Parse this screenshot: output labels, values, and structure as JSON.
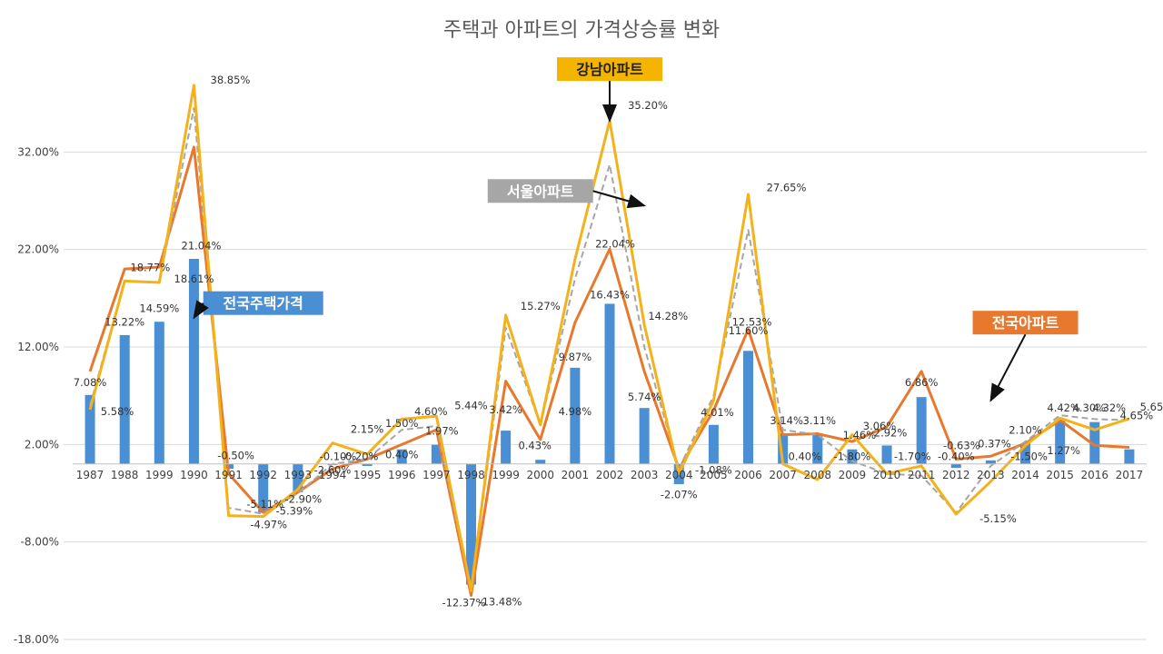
{
  "chart_data": {
    "type": "bar",
    "title": "주택과 아파트의 가격상승률 변화",
    "categories": [
      "1987",
      "1988",
      "1999",
      "1990",
      "1991",
      "1992",
      "1993",
      "1994",
      "1995",
      "1996",
      "1997",
      "1998",
      "1999",
      "2000",
      "2001",
      "2002",
      "2003",
      "2004",
      "2005",
      "2006",
      "2007",
      "2008",
      "2009",
      "2010",
      "2011",
      "2012",
      "2013",
      "2014",
      "2015",
      "2016",
      "2017"
    ],
    "ylim": [
      -18,
      42
    ],
    "yticks": [
      "32.00%",
      "22.00%",
      "12.00%",
      "2.00%",
      "-8.00%",
      "-18.00%"
    ],
    "ytick_values": [
      32,
      22,
      12,
      2,
      -8,
      -18
    ],
    "gridlines": true,
    "series": [
      {
        "name": "전국주택가격",
        "kind": "bar",
        "color": "#4a8fd3",
        "values": [
          7.08,
          13.22,
          14.59,
          21.04,
          -0.5,
          -5.0,
          -2.9,
          -0.1,
          -0.2,
          1.5,
          1.97,
          -12.37,
          3.42,
          0.43,
          9.87,
          16.43,
          5.74,
          -2.07,
          4.01,
          11.6,
          3.14,
          3.11,
          1.5,
          1.9,
          6.86,
          -0.4,
          0.37,
          2.1,
          4.42,
          4.3,
          1.5
        ]
      },
      {
        "name": "전국아파트",
        "kind": "line",
        "color": "#e8782d",
        "values": [
          9.5,
          20.0,
          20.2,
          32.5,
          -1.0,
          -4.97,
          -2.9,
          -0.5,
          0.5,
          2.0,
          3.5,
          -13.48,
          8.5,
          2.5,
          14.5,
          22.04,
          9.5,
          -0.5,
          5.5,
          13.8,
          3.0,
          3.1,
          2.3,
          3.8,
          9.5,
          0.5,
          0.8,
          2.1,
          4.5,
          1.9,
          1.7
        ]
      },
      {
        "name": "서울아파트",
        "kind": "line",
        "color": "#a6a6a6",
        "dashed": true,
        "values": [
          6.0,
          18.77,
          18.61,
          36.5,
          -4.5,
          -5.11,
          -3.0,
          0.0,
          0.5,
          3.5,
          3.9,
          -13.0,
          14.0,
          4.0,
          19.0,
          30.7,
          12.0,
          -0.5,
          7.0,
          24.0,
          3.5,
          3.0,
          0.3,
          -1.0,
          -1.2,
          -5.0,
          -0.2,
          2.3,
          5.0,
          4.6,
          4.5
        ]
      },
      {
        "name": "강남아파트",
        "kind": "line",
        "color": "#f3b21c",
        "values": [
          5.58,
          18.77,
          18.61,
          38.85,
          -5.3,
          -5.39,
          -2.6,
          2.15,
          1.0,
          4.6,
          4.9,
          -13.0,
          15.27,
          4.0,
          21.0,
          35.2,
          14.28,
          -1.0,
          6.5,
          27.65,
          0.0,
          -1.6,
          3.0,
          -1.0,
          -0.2,
          -5.15,
          -1.8,
          1.9,
          4.7,
          3.5,
          4.65
        ]
      }
    ],
    "data_labels": [
      {
        "text": "7.08%",
        "cat": 0,
        "y": 8.0
      },
      {
        "text": "5.58%",
        "cat": 0,
        "y": 5.0,
        "dx": 30
      },
      {
        "text": "13.22%",
        "cat": 1,
        "y": 14.2
      },
      {
        "text": "14.59%",
        "cat": 2,
        "y": 15.6
      },
      {
        "text": "18.77%",
        "cat": 2,
        "y": 19.8,
        "dx": -10
      },
      {
        "text": "21.04%",
        "cat": 3,
        "y": 22.0,
        "dx": 8
      },
      {
        "text": "18.61%",
        "cat": 3,
        "y": 18.6,
        "dx": 0
      },
      {
        "text": "38.85%",
        "cat": 3,
        "y": 39.0,
        "dx": 40
      },
      {
        "text": "-0.50%",
        "cat": 4,
        "y": 0.5,
        "dx": 8
      },
      {
        "text": "-5.11%",
        "cat": 5,
        "y": -4.5,
        "dx": 2
      },
      {
        "text": "-4.97%",
        "cat": 5,
        "y": -6.6,
        "dx": 6
      },
      {
        "text": "-5.39%",
        "cat": 6,
        "y": -5.2,
        "dx": -4
      },
      {
        "text": "-2.90%",
        "cat": 6,
        "y": -4.0,
        "dx": 6
      },
      {
        "text": "-2.60%",
        "cat": 7,
        "y": -1.0,
        "dx": 0
      },
      {
        "text": "-0.10%",
        "cat": 7,
        "y": 0.4,
        "dx": 6
      },
      {
        "text": "-0.20%",
        "cat": 8,
        "y": 0.4,
        "dx": -8
      },
      {
        "text": "2.15%",
        "cat": 8,
        "y": 3.2,
        "dx": 0
      },
      {
        "text": "0.40%",
        "cat": 9,
        "y": 0.6,
        "dx": 0
      },
      {
        "text": "1.50%",
        "cat": 9,
        "y": 3.8,
        "dx": 0
      },
      {
        "text": "4.60%",
        "cat": 10,
        "y": 5.0,
        "dx": -6
      },
      {
        "text": "1.97%",
        "cat": 10,
        "y": 3.0,
        "dx": 6
      },
      {
        "text": "5.44%",
        "cat": 11,
        "y": 5.6,
        "dx": 0
      },
      {
        "text": "-12.37%",
        "cat": 11,
        "y": -14.6,
        "dx": -8
      },
      {
        "text": "-13.48%",
        "cat": 11,
        "y": -14.5,
        "dx": 32
      },
      {
        "text": "3.42%",
        "cat": 12,
        "y": 5.2,
        "dx": 0
      },
      {
        "text": "0.43%",
        "cat": 13,
        "y": 1.5,
        "dx": -6
      },
      {
        "text": "15.27%",
        "cat": 13,
        "y": 15.8,
        "dx": 0
      },
      {
        "text": "4.98%",
        "cat": 14,
        "y": 5.0,
        "dx": 0
      },
      {
        "text": "9.87%",
        "cat": 14,
        "y": 10.6,
        "dx": 0
      },
      {
        "text": "22.04%",
        "cat": 15,
        "y": 22.2,
        "dx": 6
      },
      {
        "text": "16.43%",
        "cat": 15,
        "y": 17.0,
        "dx": 0
      },
      {
        "text": "35.20%",
        "cat": 15,
        "y": 36.4,
        "dx": 42
      },
      {
        "text": "5.74%",
        "cat": 16,
        "y": 6.5,
        "dx": 0
      },
      {
        "text": "14.28%",
        "cat": 17,
        "y": 14.8,
        "dx": -12
      },
      {
        "text": "-2.07%",
        "cat": 17,
        "y": -3.5,
        "dx": 0
      },
      {
        "text": "-1.08%",
        "cat": 18,
        "y": -1.0,
        "dx": 0
      },
      {
        "text": "4.01%",
        "cat": 18,
        "y": 4.9,
        "dx": 4
      },
      {
        "text": "11.60%",
        "cat": 19,
        "y": 13.3,
        "dx": 0
      },
      {
        "text": "12.53%",
        "cat": 19,
        "y": 14.2,
        "dx": 4
      },
      {
        "text": "27.65%",
        "cat": 19,
        "y": 28.0,
        "dx": 42
      },
      {
        "text": "3.14%",
        "cat": 20,
        "y": 4.1,
        "dx": 4
      },
      {
        "text": "3.11%",
        "cat": 21,
        "y": 4.1,
        "dx": 2
      },
      {
        "text": "0.40%",
        "cat": 21,
        "y": 0.4,
        "dx": -14
      },
      {
        "text": "-1.80%",
        "cat": 22,
        "y": 0.4,
        "dx": 0
      },
      {
        "text": "1.46%",
        "cat": 22,
        "y": 2.6,
        "dx": 8
      },
      {
        "text": "3.06%",
        "cat": 23,
        "y": 3.5,
        "dx": -8
      },
      {
        "text": "2.92%",
        "cat": 23,
        "y": 2.8,
        "dx": 4
      },
      {
        "text": "-1.70%",
        "cat": 24,
        "y": 0.4,
        "dx": -10
      },
      {
        "text": "6.86%",
        "cat": 24,
        "y": 8.0,
        "dx": 0
      },
      {
        "text": "-0.40%",
        "cat": 25,
        "y": 0.4,
        "dx": 0
      },
      {
        "text": "-0.63%",
        "cat": 25,
        "y": 1.5,
        "dx": 6
      },
      {
        "text": "-5.15%",
        "cat": 26,
        "y": -6.0,
        "dx": 8
      },
      {
        "text": "0.37%",
        "cat": 26,
        "y": 1.7,
        "dx": 4
      },
      {
        "text": "-1.50%",
        "cat": 27,
        "y": 0.4,
        "dx": 4
      },
      {
        "text": "2.10%",
        "cat": 27,
        "y": 3.1,
        "dx": 0
      },
      {
        "text": "1.27%",
        "cat": 28,
        "y": 1.0,
        "dx": 4
      },
      {
        "text": "4.42%",
        "cat": 28,
        "y": 5.4,
        "dx": 4
      },
      {
        "text": "4.30%",
        "cat": 29,
        "y": 5.4,
        "dx": -6
      },
      {
        "text": "4.32%",
        "cat": 29,
        "y": 5.4,
        "dx": 16
      },
      {
        "text": "4.65%",
        "cat": 30,
        "y": 4.6,
        "dx": 8
      },
      {
        "text": "5.65%",
        "cat": 30,
        "y": 5.5,
        "dx": 30
      }
    ],
    "callouts": [
      {
        "text": "강남아파트",
        "bg": "#f5b400",
        "fg": "#222222",
        "box_cat": 15,
        "box_y": 40.5,
        "arrow_to_cat": 15,
        "arrow_to_y": 35.2
      },
      {
        "text": "서울아파트",
        "bg": "#a6a6a6",
        "fg": "#ffffff",
        "box_cat": 13,
        "box_y": 28.0,
        "arrow_to_cat": 16,
        "arrow_to_y": 26.5
      },
      {
        "text": "전국주택가격",
        "bg": "#4a8fd3",
        "fg": "#ffffff",
        "box_cat": 5,
        "box_y": 16.5,
        "arrow_to_cat": 3,
        "arrow_to_y": 15.0
      },
      {
        "text": "전국아파트",
        "bg": "#e8782d",
        "fg": "#ffffff",
        "box_cat": 27,
        "box_y": 14.5,
        "arrow_to_cat": 26,
        "arrow_to_y": 6.5
      }
    ]
  }
}
